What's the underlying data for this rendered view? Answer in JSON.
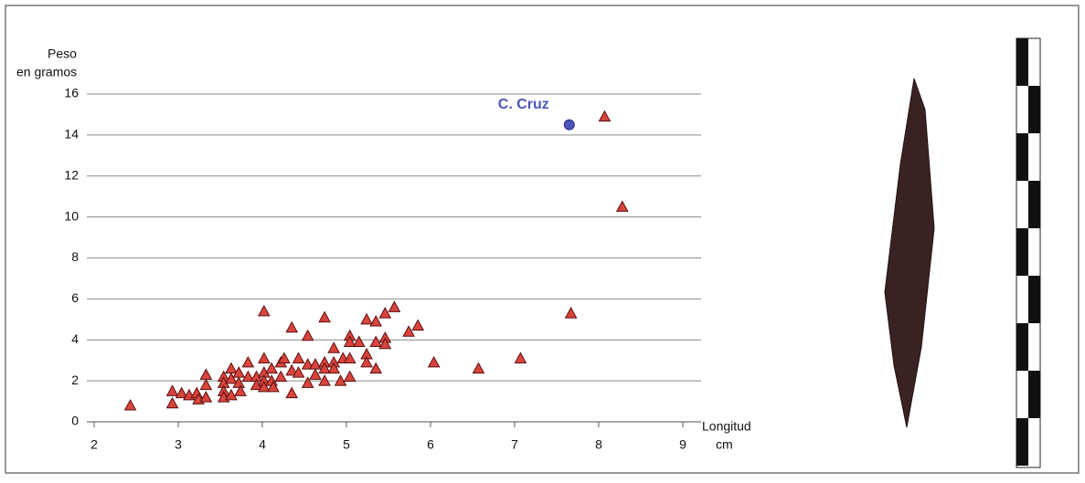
{
  "chart_data": {
    "type": "scatter",
    "ylabel": [
      "Peso",
      "en gramos"
    ],
    "xlabel": [
      "Longitud",
      "cm"
    ],
    "xlim": [
      2,
      9
    ],
    "xticks": [
      2,
      3,
      4,
      5,
      6,
      7,
      8,
      9
    ],
    "ylim": [
      0,
      16
    ],
    "yticks": [
      0,
      2,
      4,
      6,
      8,
      10,
      12,
      14,
      16
    ],
    "grid": true,
    "series": [
      {
        "color": "#d9443c",
        "marker": "triangle",
        "x": [
          2.43,
          2.93,
          2.93,
          3.04,
          3.13,
          3.22,
          3.24,
          3.33,
          3.33,
          3.33,
          3.54,
          3.54,
          3.54,
          3.54,
          3.63,
          3.63,
          3.63,
          3.72,
          3.72,
          3.74,
          3.83,
          3.83,
          3.93,
          3.93,
          4.02,
          4.02,
          4.02,
          4.02,
          4.02,
          4.11,
          4.11,
          4.13,
          4.22,
          4.22,
          4.26,
          4.35,
          4.35,
          4.35,
          4.43,
          4.43,
          4.54,
          4.54,
          4.54,
          4.63,
          4.63,
          4.74,
          4.74,
          4.74,
          4.74,
          4.85,
          4.85,
          4.85,
          4.93,
          4.96,
          5.04,
          5.04,
          5.04,
          5.04,
          5.15,
          5.24,
          5.24,
          5.24,
          5.35,
          5.35,
          5.35,
          5.46,
          5.46,
          5.46,
          5.57,
          5.74,
          5.85,
          6.04,
          6.57,
          7.07,
          7.67,
          8.07,
          8.28
        ],
        "values": [
          0.8,
          1.5,
          0.9,
          1.4,
          1.3,
          1.4,
          1.1,
          2.3,
          1.8,
          1.2,
          2.2,
          1.9,
          1.5,
          1.2,
          2.6,
          2.1,
          1.3,
          2.4,
          1.9,
          1.5,
          2.9,
          2.2,
          2.2,
          1.8,
          5.4,
          3.1,
          2.4,
          2.0,
          1.7,
          2.6,
          2.0,
          1.7,
          2.9,
          2.2,
          3.1,
          4.6,
          2.5,
          1.4,
          3.1,
          2.4,
          4.2,
          2.8,
          1.9,
          2.8,
          2.3,
          5.1,
          2.9,
          2.6,
          2.0,
          3.6,
          2.9,
          2.6,
          2.0,
          3.1,
          4.2,
          3.9,
          3.1,
          2.2,
          3.9,
          5.0,
          3.3,
          2.9,
          4.9,
          3.9,
          2.6,
          5.3,
          4.1,
          3.8,
          5.6,
          4.4,
          4.7,
          2.9,
          2.6,
          3.1,
          5.3,
          14.9,
          10.5
        ]
      },
      {
        "name": "C. Cruz",
        "color": "#4b55b8",
        "marker": "circle",
        "x": [
          7.65
        ],
        "values": [
          14.5
        ]
      }
    ]
  }
}
